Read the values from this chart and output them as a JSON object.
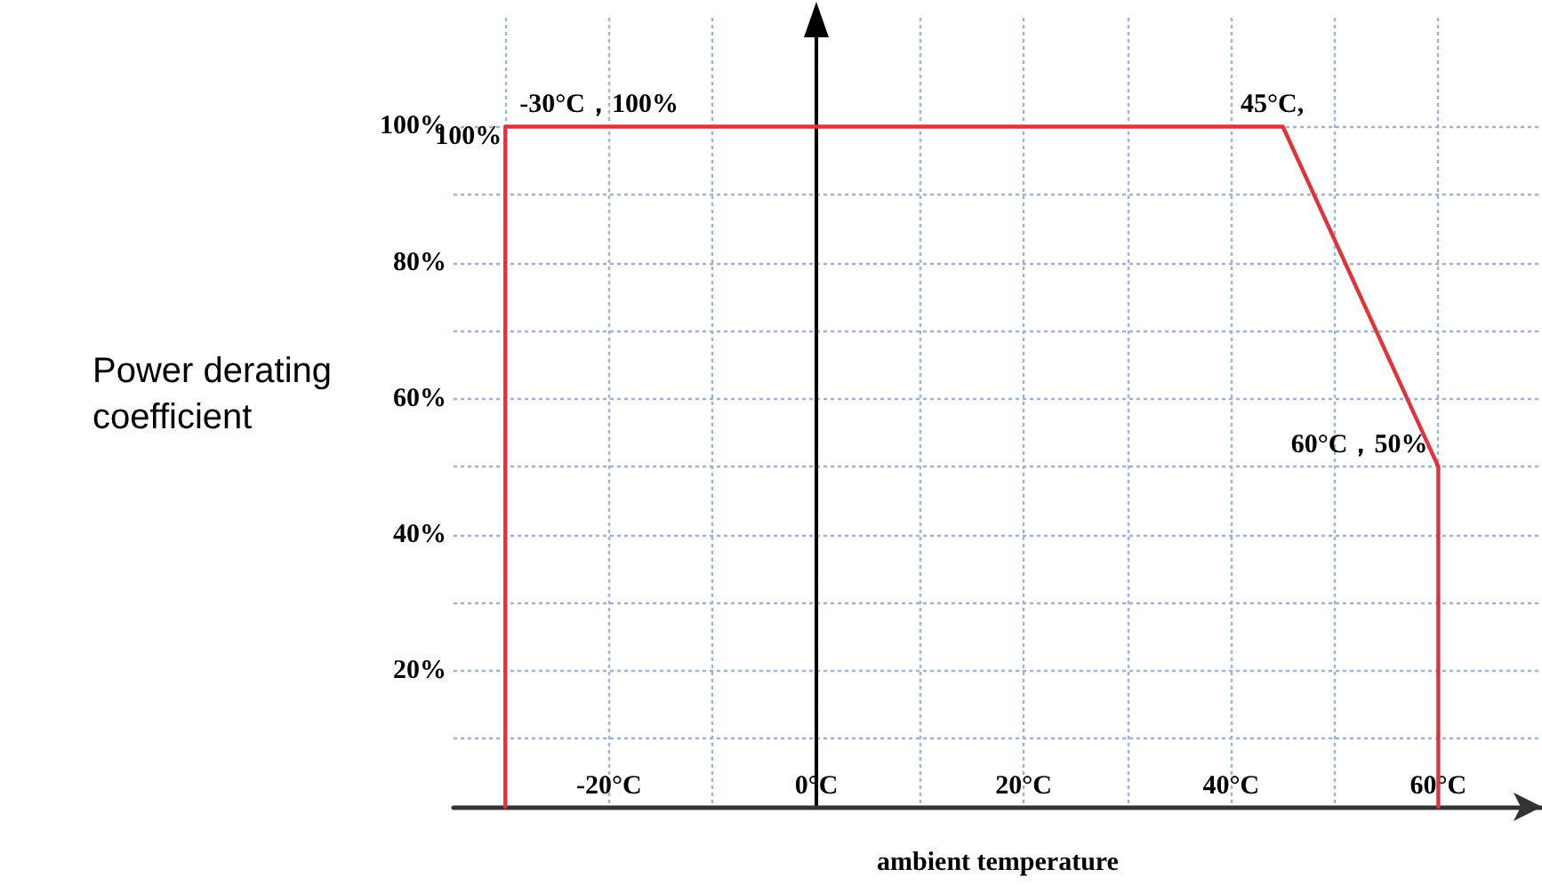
{
  "chart_data": {
    "type": "line",
    "xlabel": "ambient temperature",
    "ylabel": "Power derating coefficient",
    "x": [
      -30,
      -30,
      45,
      60,
      60
    ],
    "series": [
      {
        "color": "#e0333c",
        "values": [
          0,
          100,
          100,
          50,
          0
        ]
      }
    ],
    "xlim": [
      -35,
      70
    ],
    "ylim": [
      0,
      116
    ],
    "xticks": [
      {
        "value": -30,
        "label": null
      },
      {
        "value": -20,
        "label": "-20°C"
      },
      {
        "value": -10,
        "label": null
      },
      {
        "value": 0,
        "label": "0°C"
      },
      {
        "value": 10,
        "label": null
      },
      {
        "value": 20,
        "label": "20°C"
      },
      {
        "value": 30,
        "label": null
      },
      {
        "value": 40,
        "label": "40°C"
      },
      {
        "value": 50,
        "label": null
      },
      {
        "value": 60,
        "label": "60°C"
      }
    ],
    "yticks": [
      {
        "value": 10,
        "label": null
      },
      {
        "value": 20,
        "label": "20%"
      },
      {
        "value": 30,
        "label": null
      },
      {
        "value": 40,
        "label": "40%"
      },
      {
        "value": 50,
        "label": null
      },
      {
        "value": 60,
        "label": "60%"
      },
      {
        "value": 70,
        "label": null
      },
      {
        "value": 80,
        "label": "80%"
      },
      {
        "value": 90,
        "label": null
      },
      {
        "value": 100,
        "label": "100%"
      }
    ],
    "annotations": [
      {
        "text": "-30°C，100%",
        "x": -30,
        "y": 100
      },
      {
        "text": "100%",
        "x": -30,
        "y": 100
      },
      {
        "text": "45°C,",
        "x": 45,
        "y": 100
      },
      {
        "text": "60°C，50%",
        "x": 60,
        "y": 50
      }
    ],
    "grid": true,
    "marker": "none",
    "line_style": "solid"
  }
}
